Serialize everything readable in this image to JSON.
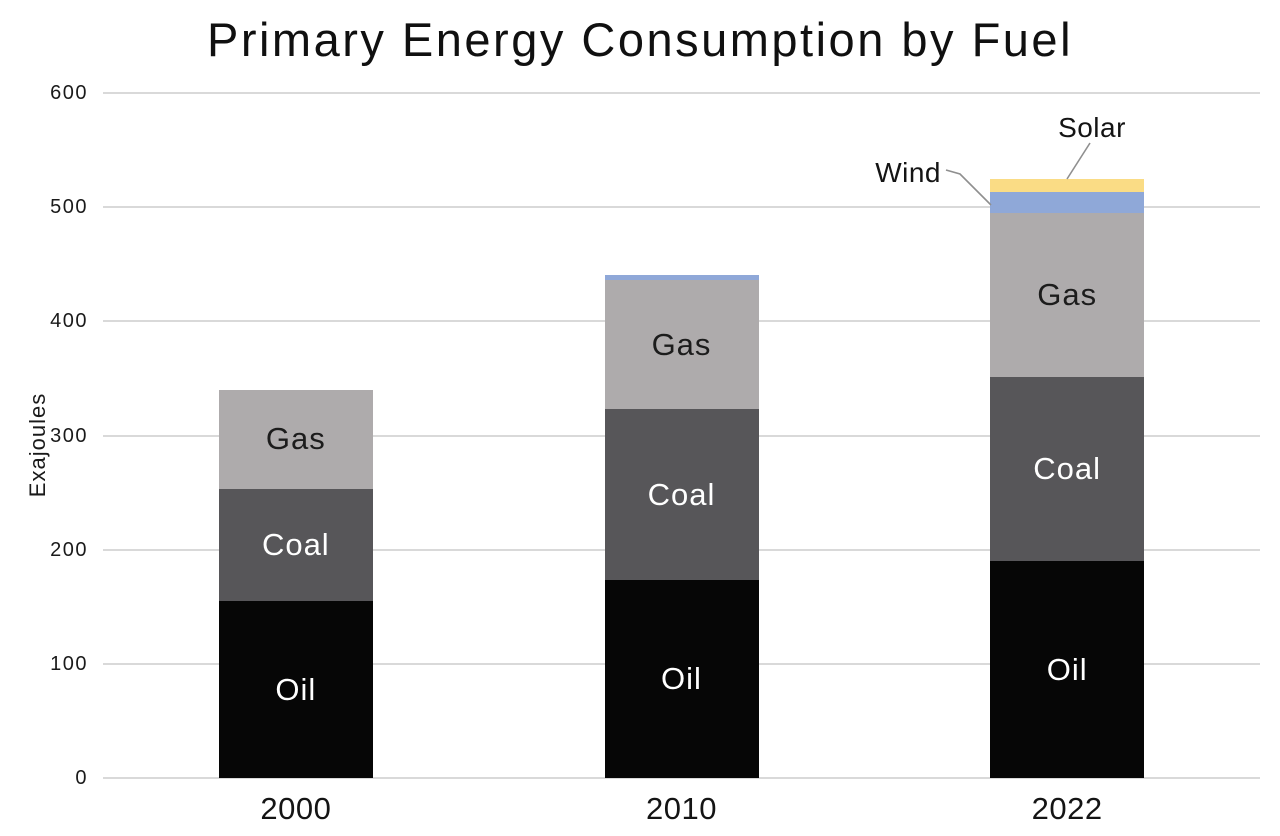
{
  "page": {
    "background": "#ffffff"
  },
  "chart_data": {
    "type": "bar",
    "stacked": true,
    "title": "Primary Energy Consumption by Fuel",
    "xlabel": "",
    "ylabel": "Exajoules",
    "categories": [
      "2000",
      "2010",
      "2022"
    ],
    "series": [
      {
        "name": "Oil",
        "color": "#060606",
        "label_color": "#ffffff",
        "values": [
          155,
          173,
          190
        ]
      },
      {
        "name": "Coal",
        "color": "#575659",
        "label_color": "#ffffff",
        "values": [
          98,
          150,
          161
        ]
      },
      {
        "name": "Gas",
        "color": "#aeabac",
        "label_color": "#1c1c1c",
        "values": [
          87,
          113,
          144
        ]
      },
      {
        "name": "Wind",
        "color": "#8fa8d8",
        "label_color": "#1c1c1c",
        "values": [
          0,
          5,
          18
        ]
      },
      {
        "name": "Solar",
        "color": "#fadc85",
        "label_color": "#1c1c1c",
        "values": [
          0,
          0,
          12
        ]
      }
    ],
    "totals": [
      340,
      441,
      525
    ],
    "ylim": [
      0,
      600
    ],
    "yticks": [
      0,
      100,
      200,
      300,
      400,
      500,
      600
    ],
    "grid": true,
    "grid_color": "#d9d9d9",
    "legend": "none",
    "annotations": [
      {
        "text": "Wind",
        "series": "Wind",
        "category": "2022"
      },
      {
        "text": "Solar",
        "series": "Solar",
        "category": "2022"
      }
    ]
  }
}
